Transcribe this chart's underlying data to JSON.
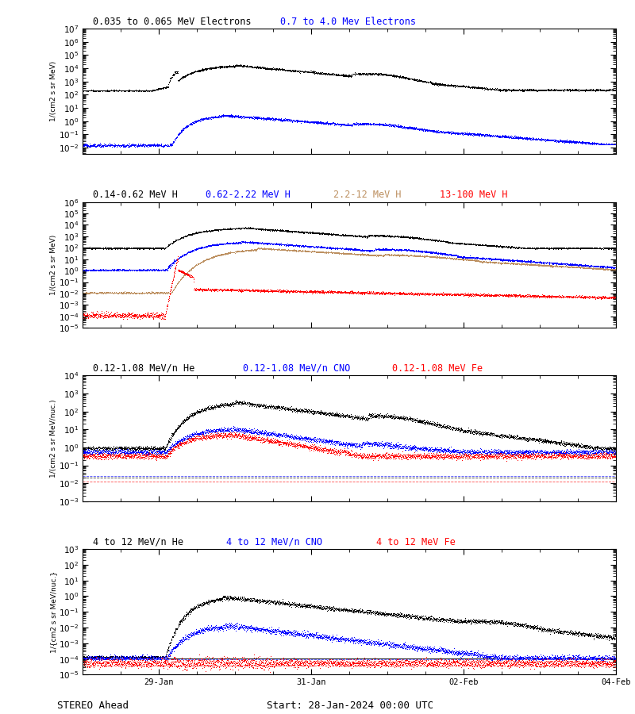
{
  "title_top": "0.035 to 0.065 MeV Electrons",
  "title_top2": "0.7 to 4.0 Mev Electrons",
  "title_p1": "0.14-0.62 MeV H",
  "title_p2": "0.62-2.22 MeV H",
  "title_p3": "2.2-12 MeV H",
  "title_p4": "13-100 MeV H",
  "title_h1": "0.12-1.08 MeV/n He",
  "title_h2": "0.12-1.08 MeV/n CNO",
  "title_h3": "0.12-1.08 MeV Fe",
  "title_fe1": "4 to 12 MeV/n He",
  "title_fe2": "4 to 12 MeV/n CNO",
  "title_fe3": "4 to 12 MeV Fe",
  "xlabel_left": "STEREO Ahead",
  "xlabel_right": "Start: 28-Jan-2024 00:00 UTC",
  "xtick_labels": [
    "29-Jan",
    "31-Jan",
    "02-Feb",
    "04-Feb"
  ],
  "ylabel1": "1/(cm2 s sr MeV)",
  "ylabel2": "1/(cm2 s sr MeV)",
  "ylabel3": "1/(cm2 s sr MeV/nuc.)",
  "ylabel4": "1/{cm2 s sr MeV/nuc.}",
  "bg_color": "#FFFFFF",
  "panel1_ylim_lo": -2.5,
  "panel1_ylim_hi": 7,
  "panel2_ylim_lo": -5,
  "panel2_ylim_hi": 6,
  "panel3_ylim_lo": -3,
  "panel3_ylim_hi": 4,
  "panel4_ylim_lo": -5,
  "panel4_ylim_hi": 3
}
